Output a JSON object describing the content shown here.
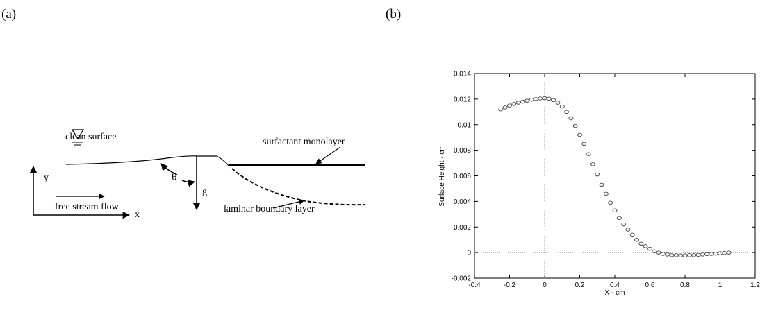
{
  "diagram": {
    "panel_label": "(a)",
    "labels": {
      "clean_surface": "clean surface",
      "surfactant": "surfactant monolayer",
      "y_axis": "y",
      "theta": "θ",
      "gravity": "g",
      "flow": "free stream flow",
      "boundary_layer": "laminar boundary layer",
      "x_axis": "x"
    }
  },
  "chart_data": {
    "type": "scatter",
    "panel_label": "(b)",
    "x_label": "X - cm",
    "y_label": "Surface Height - cm",
    "xlim": [
      -0.4,
      1.2
    ],
    "xticks": [
      -0.4,
      -0.2,
      0,
      0.2,
      0.4,
      0.6,
      0.8,
      1,
      1.2
    ],
    "ylim": [
      -0.002,
      0.014
    ],
    "yticks": [
      -0.002,
      0,
      0.002,
      0.004,
      0.006,
      0.008,
      0.01,
      0.012,
      0.014
    ],
    "zero_lines": true,
    "color": "#444444",
    "x": [
      -0.25,
      -0.225,
      -0.2,
      -0.175,
      -0.15,
      -0.125,
      -0.1,
      -0.075,
      -0.05,
      -0.025,
      0,
      0.025,
      0.05,
      0.075,
      0.1,
      0.125,
      0.15,
      0.175,
      0.2,
      0.225,
      0.25,
      0.275,
      0.3,
      0.325,
      0.35,
      0.375,
      0.4,
      0.425,
      0.45,
      0.475,
      0.5,
      0.525,
      0.55,
      0.575,
      0.6,
      0.625,
      0.65,
      0.675,
      0.7,
      0.725,
      0.75,
      0.775,
      0.8,
      0.825,
      0.85,
      0.875,
      0.9,
      0.925,
      0.95,
      0.975,
      1.0,
      1.025,
      1.05
    ],
    "values": [
      0.0112,
      0.01135,
      0.0115,
      0.01162,
      0.01172,
      0.0118,
      0.01188,
      0.01195,
      0.012,
      0.01205,
      0.01207,
      0.01203,
      0.01192,
      0.01172,
      0.01142,
      0.011,
      0.0105,
      0.0099,
      0.0092,
      0.0085,
      0.0077,
      0.0069,
      0.0061,
      0.0053,
      0.0046,
      0.0039,
      0.0033,
      0.0027,
      0.0022,
      0.0018,
      0.0014,
      0.001,
      0.0007,
      0.0005,
      0.0003,
      0.0001,
      0,
      -0.0001,
      -0.00015,
      -0.0002,
      -0.0002,
      -0.00022,
      -0.00022,
      -0.0002,
      -0.0002,
      -0.00018,
      -0.00015,
      -0.00012,
      -0.0001,
      -8e-05,
      -5e-05,
      -3e-05,
      0
    ]
  }
}
